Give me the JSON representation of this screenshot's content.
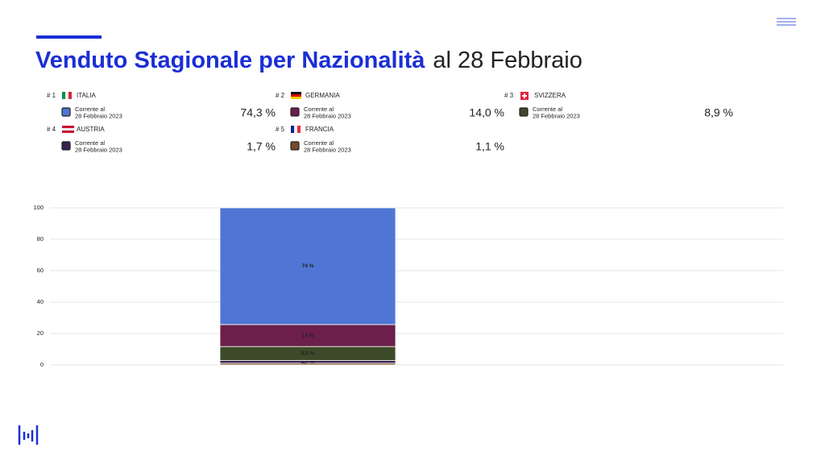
{
  "header": {
    "title_bold": "Venduto Stagionale per Nazionalità",
    "title_rest": "al 28 Febbraio"
  },
  "chart_data": {
    "type": "stacked_bar",
    "ylim": [
      0,
      100
    ],
    "yticks": [
      0,
      20,
      40,
      60,
      80,
      100
    ],
    "grid": true,
    "series": [
      {
        "rank": "# 1",
        "name": "ITALIA",
        "caption": [
          "Corrente al",
          "28 Febbraio 2023"
        ],
        "color": "#4f76d4",
        "values": [
          74.3
        ],
        "value_labels": [
          "74 %"
        ],
        "legend_label": "74,3 %"
      },
      {
        "rank": "# 2",
        "name": "GERMANIA",
        "caption": [
          "Corrente al",
          "28 Febbraio 2023"
        ],
        "color": "#6b1f4a",
        "values": [
          14.0
        ],
        "value_labels": [
          "14 %"
        ],
        "legend_label": "14,0 %"
      },
      {
        "rank": "# 3",
        "name": "SVIZZERA",
        "caption": [
          "Corrente al",
          "28 Febbraio 2023"
        ],
        "color": "#3d4a2a",
        "values": [
          8.9
        ],
        "value_labels": [
          "8,9 %"
        ],
        "legend_label": "8,9 %"
      },
      {
        "rank": "# 4",
        "name": "AUSTRIA",
        "caption": [
          "Corrente al",
          "28 Febbraio 2023"
        ],
        "color": "#3a2350",
        "values": [
          1.7
        ],
        "value_labels": [
          "1,7 %"
        ],
        "legend_label": "1,7 %"
      },
      {
        "rank": "# 5",
        "name": "FRANCIA",
        "caption": [
          "Corrente al",
          "28 Febbraio 2023"
        ],
        "color": "#7a4a2a",
        "values": [
          1.1
        ],
        "legend_label": "1,1 %"
      }
    ]
  }
}
